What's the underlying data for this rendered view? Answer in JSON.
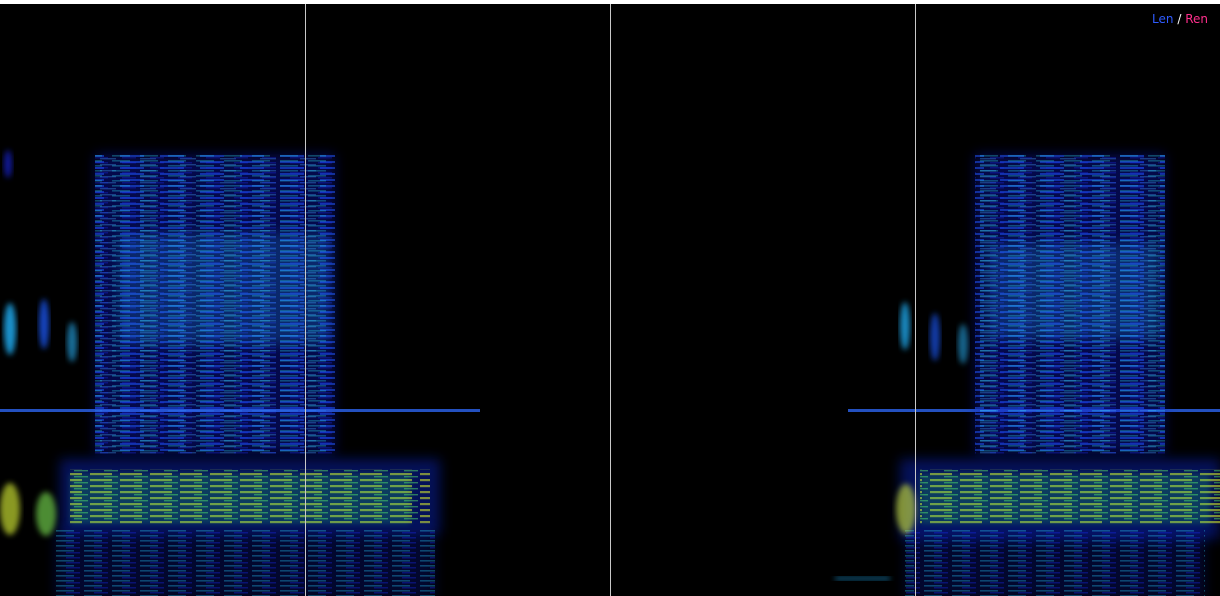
{
  "legend": {
    "left_label": "Len",
    "separator": "/",
    "right_label": "Ren",
    "left_color": "#2f5bff",
    "right_color": "#ff2f8c"
  },
  "view": {
    "background": "#000000",
    "colormap": "jet",
    "marker_color": "#c8c8c8"
  }
}
